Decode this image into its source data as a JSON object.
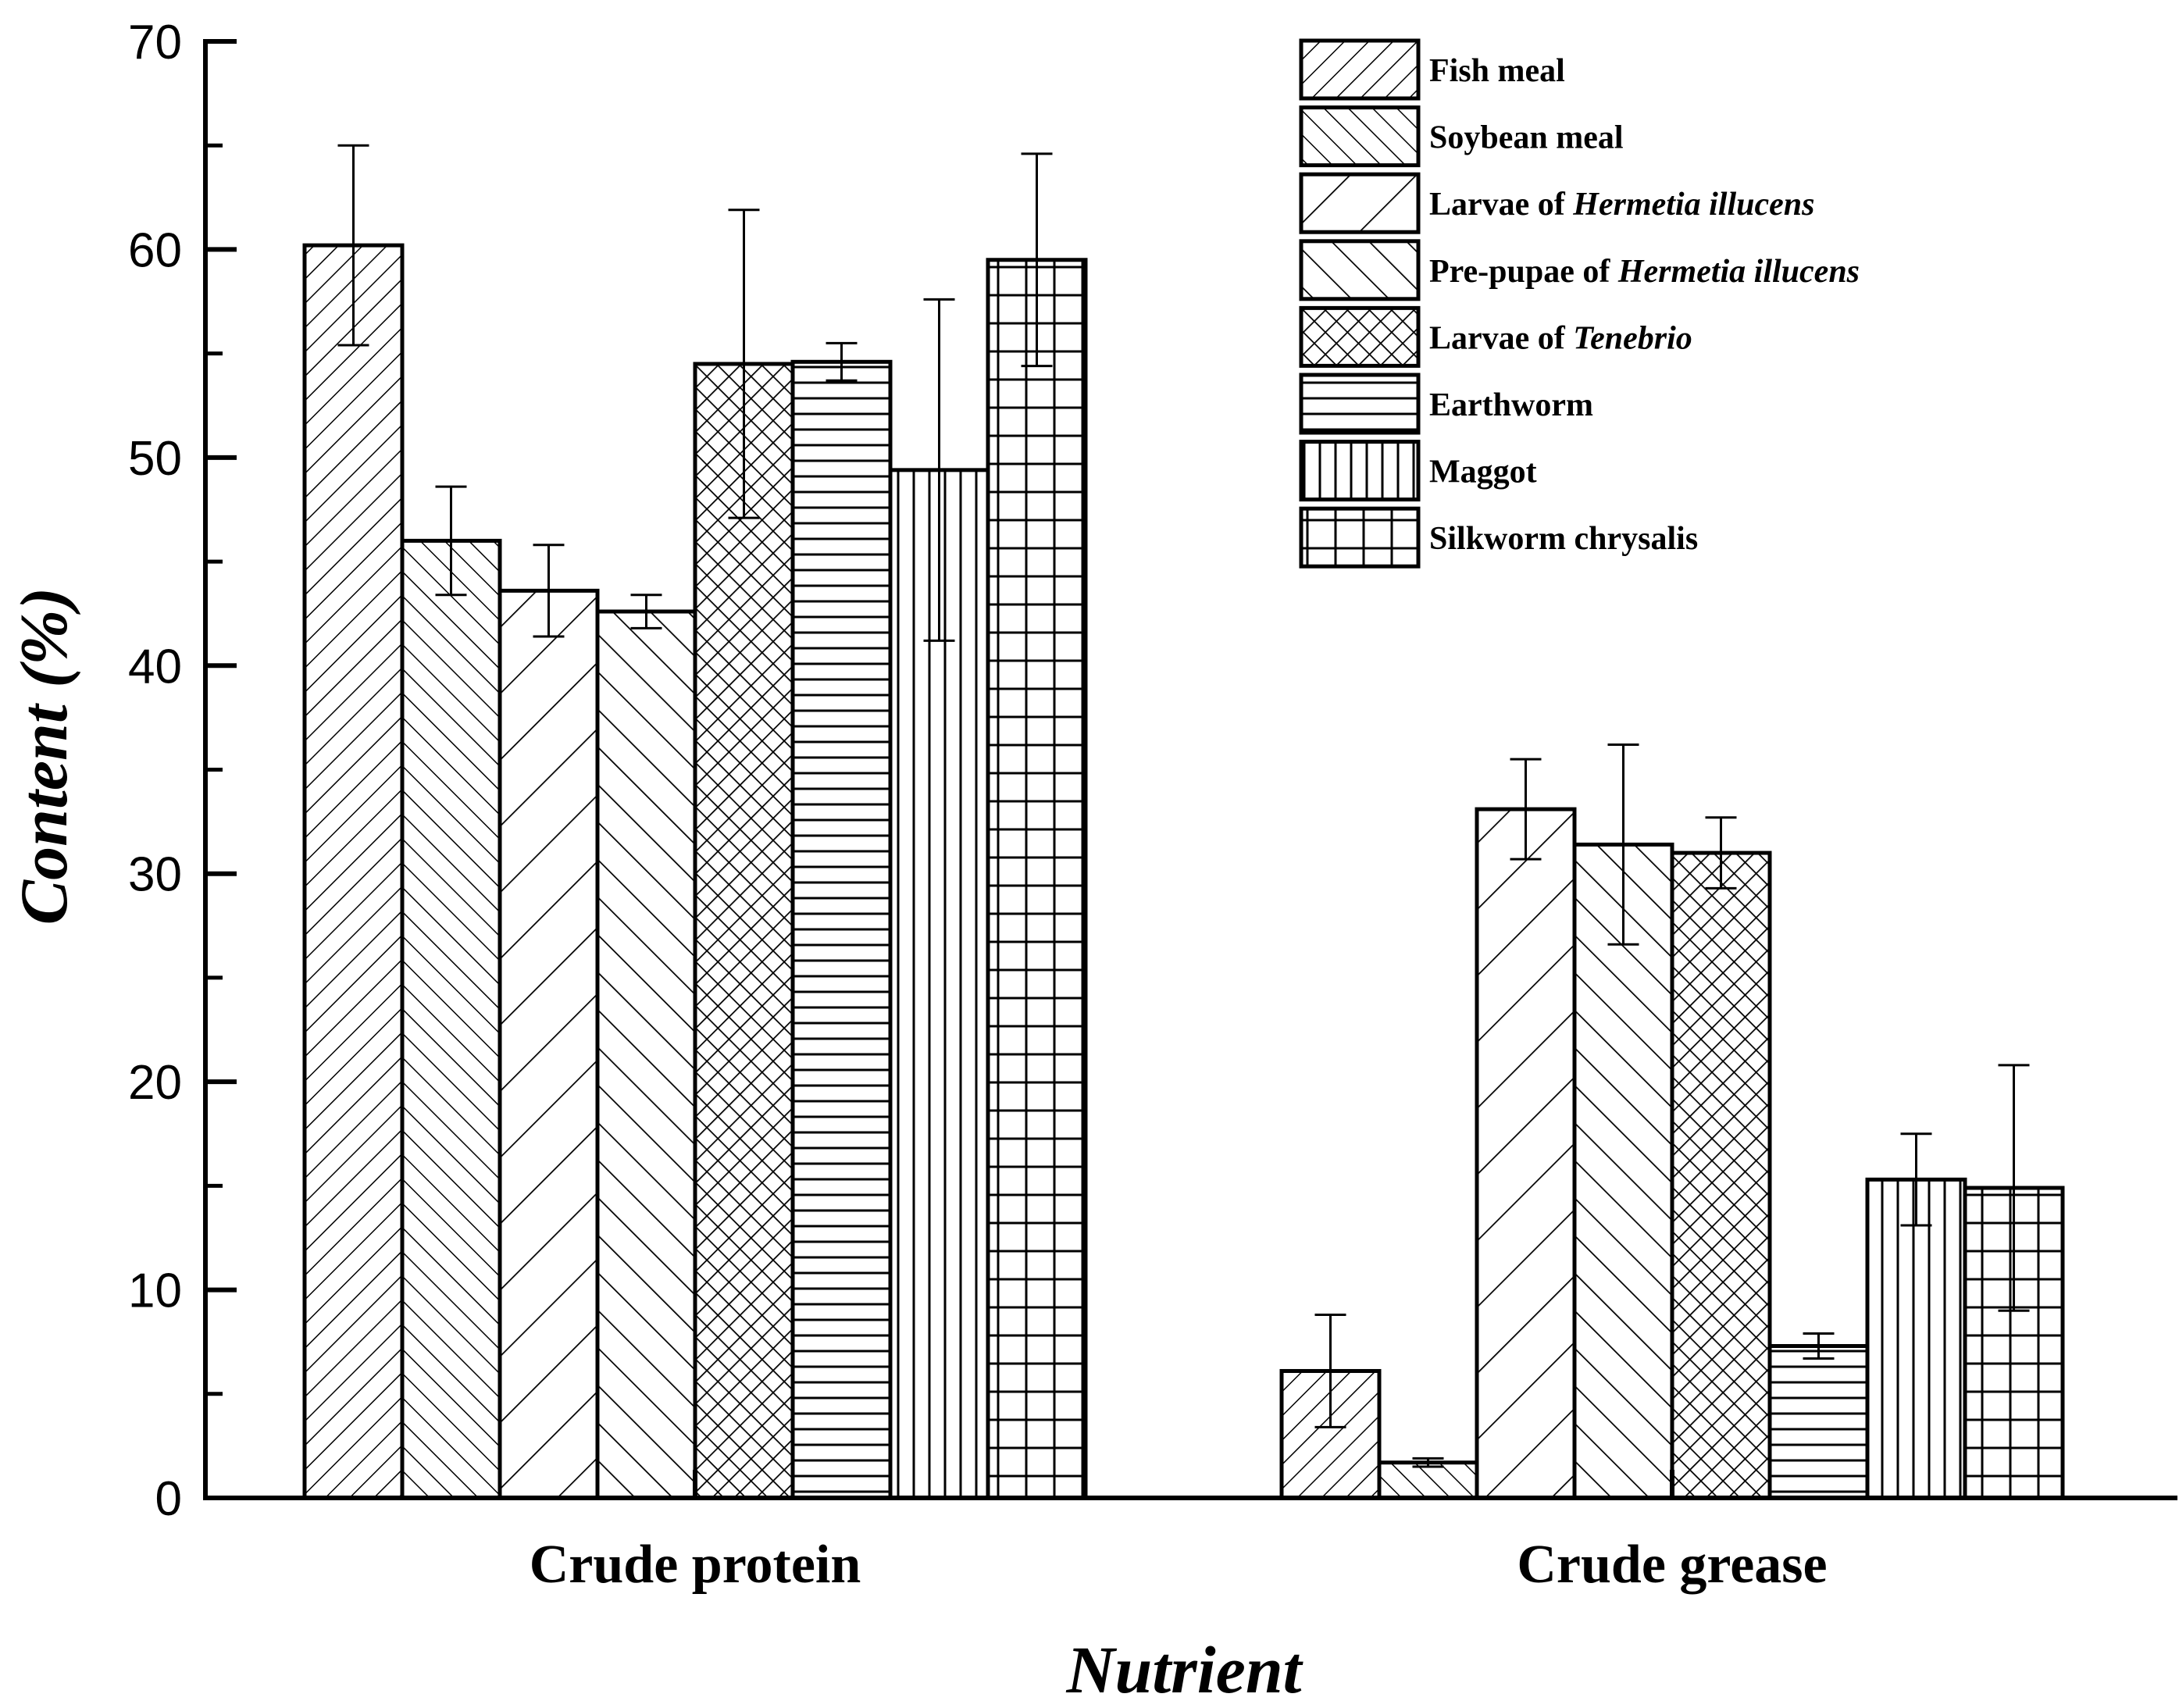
{
  "chart_data": {
    "type": "bar",
    "title": "",
    "xlabel": "Nutrient",
    "ylabel": "Content (%)",
    "ylim": [
      0,
      70
    ],
    "yticks": [
      "0",
      "10",
      "20",
      "30",
      "40",
      "50",
      "60",
      "70"
    ],
    "categories": [
      "Crude protein",
      "Crude grease"
    ],
    "legend_position": "top-right",
    "series": [
      {
        "name": "Fish meal",
        "name_parts": [
          {
            "text": "Fish meal",
            "italic": false
          }
        ],
        "pattern": "diag-right",
        "values": [
          60.2,
          6.1
        ],
        "errors": [
          4.8,
          2.7
        ]
      },
      {
        "name": "Soybean meal",
        "name_parts": [
          {
            "text": "Soybean meal",
            "italic": false
          }
        ],
        "pattern": "diag-left",
        "values": [
          46.0,
          1.7
        ],
        "errors": [
          2.6,
          0.2
        ]
      },
      {
        "name": "Larvae of Hermetia illucens",
        "name_parts": [
          {
            "text": "Larvae of ",
            "italic": false
          },
          {
            "text": "Hermetia illucens",
            "italic": true
          }
        ],
        "pattern": "diag-right-wide",
        "values": [
          43.6,
          33.1
        ],
        "errors": [
          2.2,
          2.4
        ]
      },
      {
        "name": "Pre-pupae of Hermetia illucens",
        "name_parts": [
          {
            "text": "Pre-pupae of ",
            "italic": false
          },
          {
            "text": "Hermetia illucens",
            "italic": true
          }
        ],
        "pattern": "diag-left-wide",
        "values": [
          42.6,
          31.4
        ],
        "errors": [
          0.8,
          4.8
        ]
      },
      {
        "name": "Larvae of Tenebrio",
        "name_parts": [
          {
            "text": "Larvae of ",
            "italic": false
          },
          {
            "text": "Tenebrio",
            "italic": true
          }
        ],
        "pattern": "cross-hatch",
        "values": [
          54.5,
          31.0
        ],
        "errors": [
          7.4,
          1.7
        ]
      },
      {
        "name": "Earthworm",
        "name_parts": [
          {
            "text": "Earthworm",
            "italic": false
          }
        ],
        "pattern": "horizontal",
        "values": [
          54.6,
          7.3
        ],
        "errors": [
          0.9,
          0.6
        ]
      },
      {
        "name": "Maggot",
        "name_parts": [
          {
            "text": "Maggot",
            "italic": false
          }
        ],
        "pattern": "vertical",
        "values": [
          49.4,
          15.3
        ],
        "errors": [
          8.2,
          2.2
        ]
      },
      {
        "name": "Silkworm chrysalis",
        "name_parts": [
          {
            "text": "Silkworm chrysalis",
            "italic": false
          }
        ],
        "pattern": "grid",
        "values": [
          59.5,
          14.9
        ],
        "errors": [
          5.1,
          5.9
        ]
      }
    ]
  }
}
